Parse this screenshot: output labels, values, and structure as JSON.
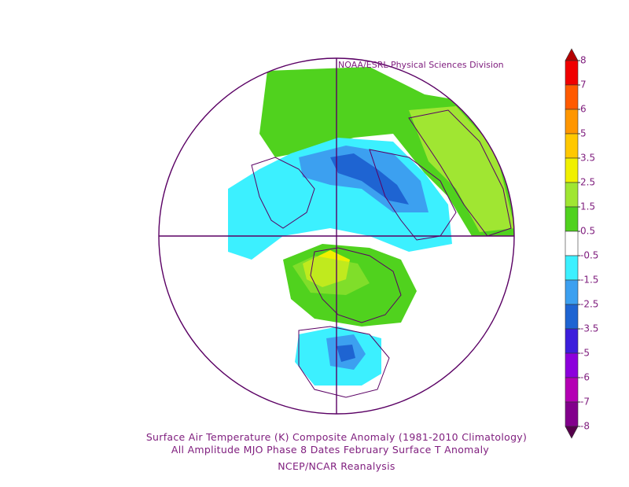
{
  "credit": "NOAA/ESRL Physical Sciences Division",
  "caption": [
    "Surface Air Temperature (K) Composite Anomaly (1981-2010 Climatology)",
    "All Amplitude MJO Phase 8 Dates February Surface T Anomaly",
    "NCEP/NCAR Reanalysis"
  ],
  "colorbar": {
    "ticks": [
      8,
      7,
      6,
      5,
      3.5,
      2.5,
      1.5,
      0.5,
      -0.5,
      -1.5,
      -2.5,
      -3.5,
      -5,
      -6,
      -7,
      -8
    ],
    "colors": [
      "#b40000",
      "#f00000",
      "#ff5a00",
      "#ff9600",
      "#ffc800",
      "#f0f000",
      "#a0e632",
      "#50d21e",
      "#ffffff",
      "#3cf0ff",
      "#3ca0f0",
      "#1e64d2",
      "#3c1edc",
      "#8c00dc",
      "#b400b4",
      "#82008c",
      "#55004b"
    ]
  }
}
